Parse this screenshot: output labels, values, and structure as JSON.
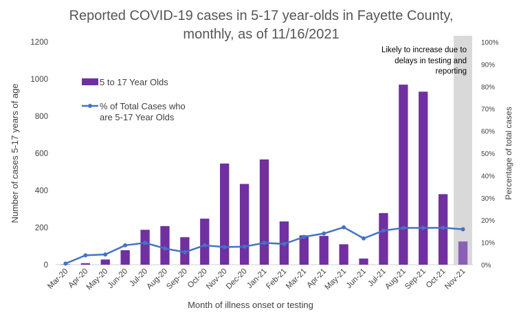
{
  "chart_data": {
    "type": "bar",
    "title_line1": "Reported COVID-19 cases in 5-17 year-olds in Fayette County,",
    "title_line2": "monthly, as of 11/16/2021",
    "xlabel": "Month of illness onset or testing",
    "ylabel": "Number of cases 5-17 years of age",
    "y2label": "Percentage of total cases",
    "ylim": [
      0,
      1200
    ],
    "y2lim": [
      0,
      100
    ],
    "yticks": [
      0,
      200,
      400,
      600,
      800,
      1000,
      1200
    ],
    "y2ticks": [
      "0%",
      "10%",
      "20%",
      "30%",
      "40%",
      "50%",
      "60%",
      "70%",
      "80%",
      "90%",
      "100%"
    ],
    "categories": [
      "Mar-20",
      "Apr-20",
      "May-20",
      "Jun-20",
      "Jul-20",
      "Aug-20",
      "Sep-20",
      "Oct-20",
      "Nov-20",
      "Dec-20",
      "Jan-21",
      "Feb-21",
      "Mar-21",
      "Apr-21",
      "May-21",
      "Jun-21",
      "Jul-21",
      "Aug-21",
      "Sep-21",
      "Oct-21",
      "Nov-21"
    ],
    "series": [
      {
        "name": "5 to 17 Year Olds",
        "kind": "bar",
        "axis": "left",
        "color": "#7030A0",
        "values": [
          2,
          8,
          28,
          78,
          188,
          208,
          148,
          248,
          545,
          435,
          567,
          233,
          158,
          155,
          110,
          33,
          278,
          970,
          932,
          380,
          125
        ]
      },
      {
        "name_line1": "% of Total Cases who",
        "name_line2": "are 5-17 Year Olds",
        "kind": "line",
        "axis": "right",
        "color": "#4472C4",
        "values": [
          0.5,
          4.2,
          4.6,
          8.7,
          9.8,
          7.3,
          5.6,
          8.7,
          7.9,
          8.1,
          9.8,
          9.3,
          12.5,
          14.0,
          16.8,
          11.8,
          15.3,
          16.5,
          16.5,
          16.6,
          15.9
        ]
      }
    ],
    "highlight": {
      "category": "Nov-21",
      "color": "#D9D9D9",
      "note_lines": [
        "Likely to increase due to",
        "delays in testing and",
        "reporting"
      ]
    },
    "legend_position": "upper-left",
    "grid": false
  }
}
